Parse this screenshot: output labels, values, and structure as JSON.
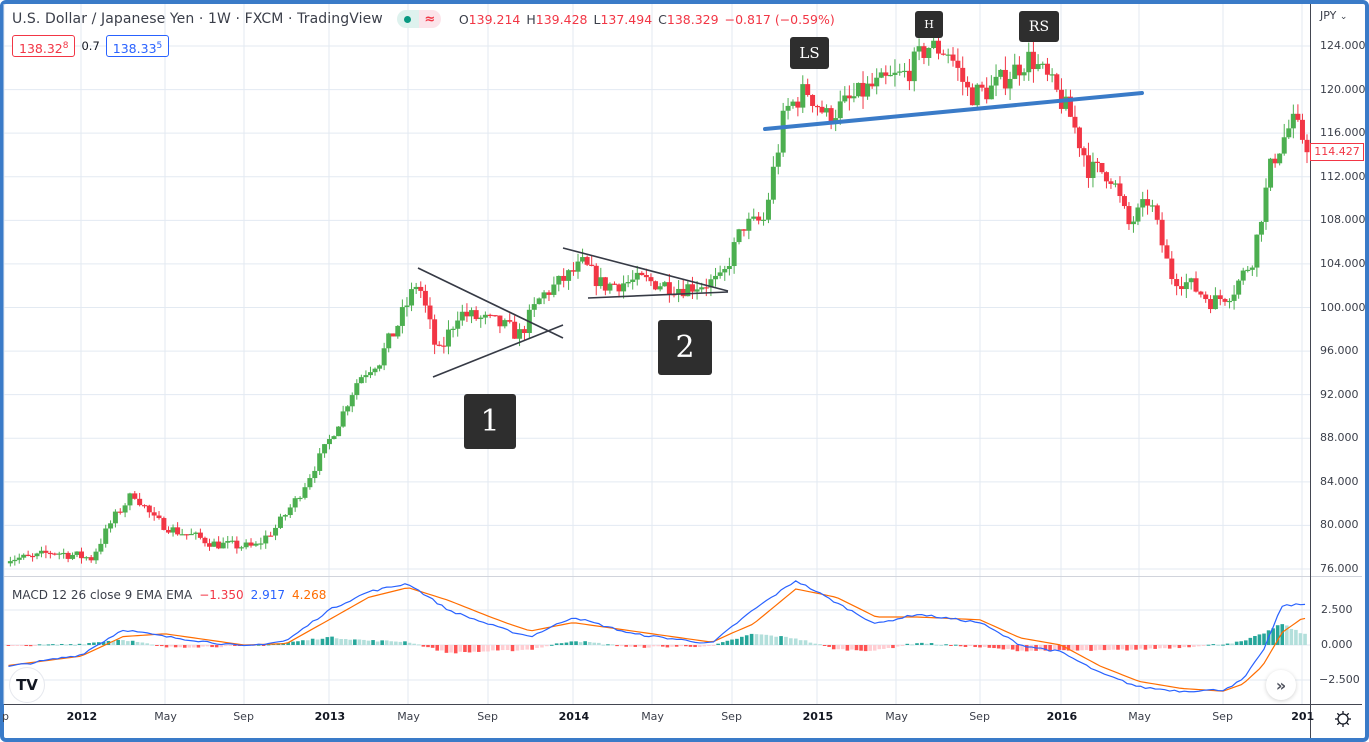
{
  "header": {
    "title": "U.S. Dollar / Japanese Yen · 1W · FXCM · TradingView",
    "market_status_icon": "market-open-dot-icon",
    "delayed_icon": "approx-wave-icon",
    "ohlc": {
      "open_label": "O",
      "open": "139.214",
      "high_label": "H",
      "high": "139.428",
      "low_label": "L",
      "low": "137.494",
      "close_label": "C",
      "close": "138.329",
      "change": "−0.817 (−0.59%)"
    },
    "sell_price_main": "138.32",
    "sell_price_sup": "8",
    "spread": "0.7",
    "buy_price_main": "138.33",
    "buy_price_sup": "5"
  },
  "price_axis": {
    "currency": "JPY",
    "currency_icon": "chevron-down-icon",
    "ticks": [
      "124.000",
      "120.000",
      "116.000",
      "112.000",
      "108.000",
      "104.000",
      "100.000",
      "96.000",
      "92.000",
      "88.000",
      "84.000",
      "80.000",
      "76.000"
    ],
    "last_price": "114.427"
  },
  "macd": {
    "label": "MACD 12 26 close 9 EMA EMA",
    "histogram": "−1.350",
    "macd": "2.917",
    "signal": "4.268",
    "ticks": [
      "2.500",
      "0.000",
      "−2.500"
    ]
  },
  "time_axis": {
    "labels": [
      "p",
      "2012",
      "May",
      "Sep",
      "2013",
      "May",
      "Sep",
      "2014",
      "May",
      "Sep",
      "2015",
      "May",
      "Sep",
      "2016",
      "May",
      "Sep",
      "201"
    ]
  },
  "annotations": {
    "pattern_1": "1",
    "pattern_2": "2",
    "left_shoulder": "LS",
    "head": "H",
    "right_shoulder": "RS"
  },
  "controls": {
    "logo": "TV",
    "logo_icon": "tradingview-logo-icon",
    "scroll_icon": "double-chevron-right-icon",
    "settings_icon": "gear-icon"
  },
  "colors": {
    "up": "#4caf50",
    "down": "#f23645",
    "macd_line": "#2962ff",
    "signal_line": "#ff6d00",
    "hist_up_strong": "#26a69a",
    "hist_up_weak": "#b2dfdb",
    "hist_down_strong": "#ff5252",
    "hist_down_weak": "#ffcdd2",
    "neckline": "#3a7bc8",
    "frame": "#3a7bc8"
  },
  "chart_data": {
    "type": "candlestick",
    "title": "U.S. Dollar / Japanese Yen · 1W · FXCM",
    "xlabel": "",
    "ylabel": "JPY",
    "ylim": [
      75,
      126
    ],
    "x_range": [
      "2011-09",
      "2017-01"
    ],
    "grid": true,
    "weekly_close_path": [
      {
        "date": "2011-10",
        "close": 77.0
      },
      {
        "date": "2011-11",
        "close": 77.6
      },
      {
        "date": "2012-01",
        "close": 77.0
      },
      {
        "date": "2012-02",
        "close": 80.5
      },
      {
        "date": "2012-03",
        "close": 83.0
      },
      {
        "date": "2012-04",
        "close": 80.5
      },
      {
        "date": "2012-05",
        "close": 79.5
      },
      {
        "date": "2012-06",
        "close": 79.0
      },
      {
        "date": "2012-07",
        "close": 78.3
      },
      {
        "date": "2012-09",
        "close": 78.0
      },
      {
        "date": "2012-10",
        "close": 79.8
      },
      {
        "date": "2012-11",
        "close": 82.5
      },
      {
        "date": "2013-01",
        "close": 89.5
      },
      {
        "date": "2013-02",
        "close": 93.5
      },
      {
        "date": "2013-03",
        "close": 95.0
      },
      {
        "date": "2013-04",
        "close": 98.5
      },
      {
        "date": "2013-05",
        "close": 102.5
      },
      {
        "date": "2013-06",
        "close": 95.5
      },
      {
        "date": "2013-07",
        "close": 99.5
      },
      {
        "date": "2013-09",
        "close": 98.5
      },
      {
        "date": "2013-10",
        "close": 97.5
      },
      {
        "date": "2013-11",
        "close": 101.0
      },
      {
        "date": "2014-01",
        "close": 104.0
      },
      {
        "date": "2014-02",
        "close": 102.0
      },
      {
        "date": "2014-04",
        "close": 102.5
      },
      {
        "date": "2014-06",
        "close": 101.8
      },
      {
        "date": "2014-08",
        "close": 102.5
      },
      {
        "date": "2014-09",
        "close": 107.5
      },
      {
        "date": "2014-10",
        "close": 108.0
      },
      {
        "date": "2014-11",
        "close": 118.0
      },
      {
        "date": "2014-12",
        "close": 120.0
      },
      {
        "date": "2015-01",
        "close": 117.5
      },
      {
        "date": "2015-03",
        "close": 120.0
      },
      {
        "date": "2015-05",
        "close": 121.5
      },
      {
        "date": "2015-06",
        "close": 124.0
      },
      {
        "date": "2015-07",
        "close": 123.5
      },
      {
        "date": "2015-08",
        "close": 119.5
      },
      {
        "date": "2015-09",
        "close": 120.0
      },
      {
        "date": "2015-11",
        "close": 123.0
      },
      {
        "date": "2015-12",
        "close": 120.5
      },
      {
        "date": "2016-01",
        "close": 117.5
      },
      {
        "date": "2016-02",
        "close": 112.5
      },
      {
        "date": "2016-03",
        "close": 112.5
      },
      {
        "date": "2016-04",
        "close": 107.5
      },
      {
        "date": "2016-05",
        "close": 110.0
      },
      {
        "date": "2016-06",
        "close": 103.0
      },
      {
        "date": "2016-07",
        "close": 102.0
      },
      {
        "date": "2016-08",
        "close": 100.5
      },
      {
        "date": "2016-09",
        "close": 101.5
      },
      {
        "date": "2016-10",
        "close": 104.5
      },
      {
        "date": "2016-11",
        "close": 113.5
      },
      {
        "date": "2016-12",
        "close": 117.0
      },
      {
        "date": "2017-01",
        "close": 114.4
      }
    ],
    "annotations": [
      {
        "label": "1",
        "type": "symmetrical triangle",
        "period": "2013-05 to 2013-12"
      },
      {
        "label": "2",
        "type": "descending triangle",
        "period": "2014-01 to 2014-08"
      },
      {
        "label": "LS",
        "price": 121.8
      },
      {
        "label": "H",
        "price": 125.8
      },
      {
        "label": "RS",
        "price": 124.0
      },
      {
        "label": "neckline",
        "from": {
          "date": "2014-11",
          "price": 116.3
        },
        "to": {
          "date": "2016-05",
          "price": 119.7
        }
      }
    ],
    "macd_panel": {
      "type": "line+histogram",
      "ylim": [
        -4,
        4.5
      ],
      "ticks": [
        2.5,
        0.0,
        -2.5
      ],
      "macd_path": [
        {
          "date": "2011-09",
          "v": -1.6
        },
        {
          "date": "2012-01",
          "v": -0.7
        },
        {
          "date": "2012-03",
          "v": 1.1
        },
        {
          "date": "2012-05",
          "v": 0.6
        },
        {
          "date": "2012-09",
          "v": -0.1
        },
        {
          "date": "2012-11",
          "v": 0.3
        },
        {
          "date": "2013-01",
          "v": 2.5
        },
        {
          "date": "2013-03",
          "v": 3.8
        },
        {
          "date": "2013-05",
          "v": 4.4
        },
        {
          "date": "2013-07",
          "v": 2.5
        },
        {
          "date": "2013-10",
          "v": 1.0
        },
        {
          "date": "2013-11",
          "v": 0.6
        },
        {
          "date": "2014-01",
          "v": 2.0
        },
        {
          "date": "2014-04",
          "v": 0.8
        },
        {
          "date": "2014-08",
          "v": 0.1
        },
        {
          "date": "2014-10",
          "v": 2.5
        },
        {
          "date": "2014-12",
          "v": 4.6
        },
        {
          "date": "2015-02",
          "v": 3.0
        },
        {
          "date": "2015-04",
          "v": 1.5
        },
        {
          "date": "2015-06",
          "v": 2.2
        },
        {
          "date": "2015-09",
          "v": 1.6
        },
        {
          "date": "2015-11",
          "v": 0.0
        },
        {
          "date": "2016-01",
          "v": -0.5
        },
        {
          "date": "2016-03",
          "v": -2.0
        },
        {
          "date": "2016-05",
          "v": -3.0
        },
        {
          "date": "2016-07",
          "v": -3.3
        },
        {
          "date": "2016-09",
          "v": -3.2
        },
        {
          "date": "2016-10",
          "v": -2.5
        },
        {
          "date": "2016-11",
          "v": -0.5
        },
        {
          "date": "2016-12",
          "v": 2.8
        },
        {
          "date": "2017-01",
          "v": 2.9
        }
      ],
      "signal_path": [
        {
          "date": "2011-09",
          "v": -1.5
        },
        {
          "date": "2012-01",
          "v": -0.8
        },
        {
          "date": "2012-03",
          "v": 0.6
        },
        {
          "date": "2012-05",
          "v": 0.8
        },
        {
          "date": "2012-09",
          "v": 0.0
        },
        {
          "date": "2012-11",
          "v": 0.1
        },
        {
          "date": "2013-01",
          "v": 1.8
        },
        {
          "date": "2013-03",
          "v": 3.4
        },
        {
          "date": "2013-05",
          "v": 4.1
        },
        {
          "date": "2013-07",
          "v": 3.2
        },
        {
          "date": "2013-10",
          "v": 1.5
        },
        {
          "date": "2013-11",
          "v": 1.0
        },
        {
          "date": "2014-01",
          "v": 1.6
        },
        {
          "date": "2014-04",
          "v": 1.0
        },
        {
          "date": "2014-08",
          "v": 0.2
        },
        {
          "date": "2014-10",
          "v": 1.5
        },
        {
          "date": "2014-12",
          "v": 4.0
        },
        {
          "date": "2015-02",
          "v": 3.4
        },
        {
          "date": "2015-04",
          "v": 2.0
        },
        {
          "date": "2015-06",
          "v": 2.0
        },
        {
          "date": "2015-09",
          "v": 1.8
        },
        {
          "date": "2015-11",
          "v": 0.5
        },
        {
          "date": "2016-01",
          "v": 0.0
        },
        {
          "date": "2016-03",
          "v": -1.5
        },
        {
          "date": "2016-05",
          "v": -2.6
        },
        {
          "date": "2016-07",
          "v": -3.1
        },
        {
          "date": "2016-09",
          "v": -3.3
        },
        {
          "date": "2016-10",
          "v": -2.8
        },
        {
          "date": "2016-11",
          "v": -1.5
        },
        {
          "date": "2016-12",
          "v": 0.9
        },
        {
          "date": "2017-01",
          "v": 1.9
        }
      ]
    }
  }
}
